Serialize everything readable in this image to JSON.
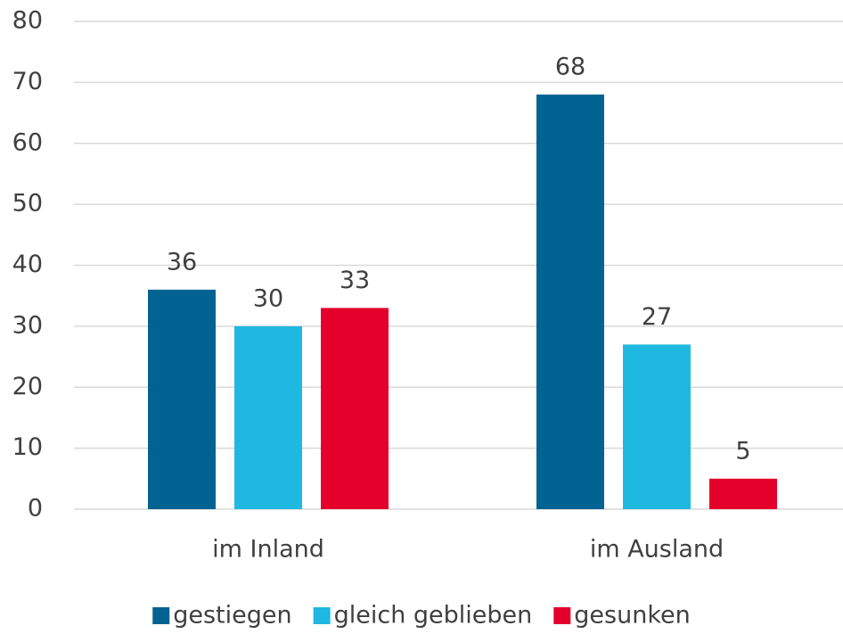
{
  "chart_data": {
    "type": "bar",
    "categories": [
      "im Inland",
      "im Ausland"
    ],
    "series": [
      {
        "name": "gestiegen",
        "color": "#006391",
        "values": [
          36,
          68
        ]
      },
      {
        "name": "gleich geblieben",
        "color": "#1fb8e0",
        "values": [
          30,
          27
        ]
      },
      {
        "name": "gesunken",
        "color": "#e4002b",
        "values": [
          33,
          5
        ]
      }
    ],
    "ylim": [
      0,
      80
    ],
    "yticks": [
      0,
      10,
      20,
      30,
      40,
      50,
      60,
      70,
      80
    ],
    "grid": true,
    "legend": "bottom"
  }
}
